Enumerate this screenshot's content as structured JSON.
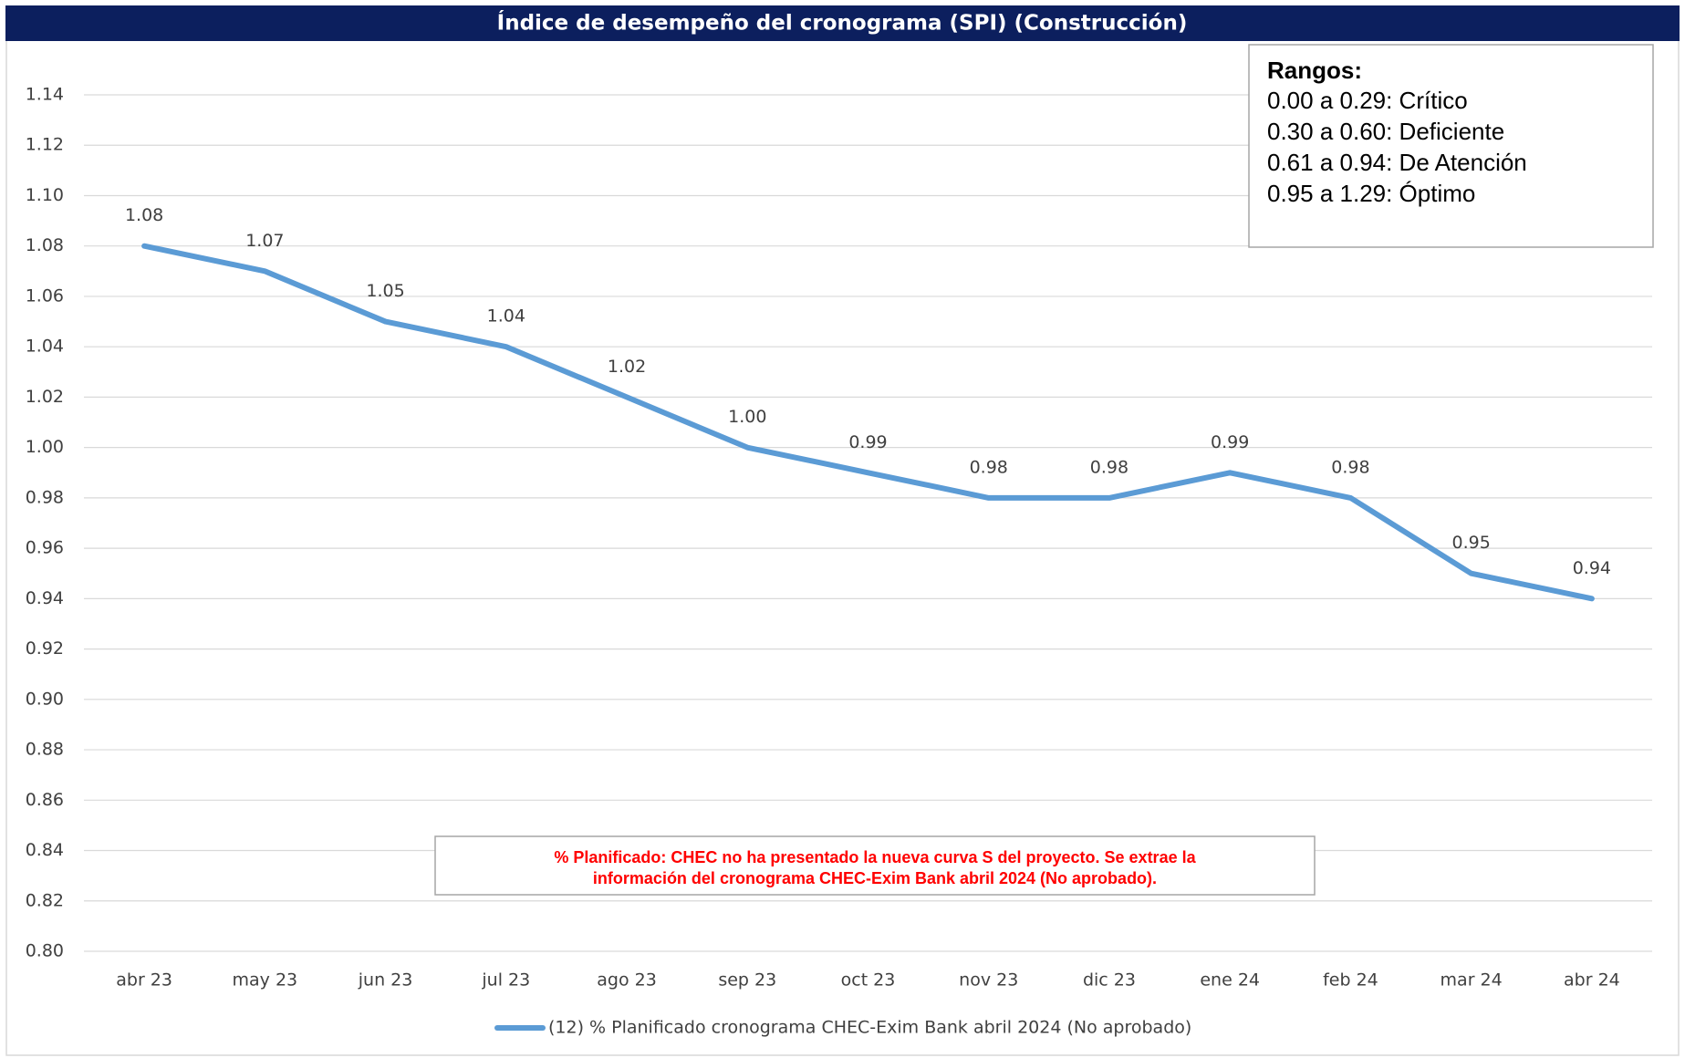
{
  "chart_data": {
    "type": "line",
    "title": "Índice de desempeño del cronograma (SPI) (Construcción)",
    "categories": [
      "abr 23",
      "may 23",
      "jun 23",
      "jul 23",
      "ago 23",
      "sep 23",
      "oct 23",
      "nov 23",
      "dic 23",
      "ene 24",
      "feb 24",
      "mar 24",
      "abr 24"
    ],
    "series": [
      {
        "name": "(12) % Planificado cronograma CHEC-Exim Bank abril 2024 (No aprobado)",
        "color": "#5b9bd5",
        "values": [
          1.08,
          1.07,
          1.05,
          1.04,
          1.02,
          1.0,
          0.99,
          0.98,
          0.98,
          0.99,
          0.98,
          0.95,
          0.94
        ],
        "value_labels": [
          "1.08",
          "1.07",
          "1.05",
          "1.04",
          "1.02",
          "1.00",
          "0.99",
          "0.98",
          "0.98",
          "0.99",
          "0.98",
          "0.95",
          "0.94"
        ]
      }
    ],
    "ylim": [
      0.8,
      1.14
    ],
    "yticks": [
      {
        "value": 0.8,
        "label": "0.80"
      },
      {
        "value": 0.82,
        "label": "0.82"
      },
      {
        "value": 0.84,
        "label": "0.84"
      },
      {
        "value": 0.86,
        "label": "0.86"
      },
      {
        "value": 0.88,
        "label": "0.88"
      },
      {
        "value": 0.9,
        "label": "0.90"
      },
      {
        "value": 0.92,
        "label": "0.92"
      },
      {
        "value": 0.94,
        "label": "0.94"
      },
      {
        "value": 0.96,
        "label": "0.96"
      },
      {
        "value": 0.98,
        "label": "0.98"
      },
      {
        "value": 1.0,
        "label": "1.00"
      },
      {
        "value": 1.02,
        "label": "1.02"
      },
      {
        "value": 1.04,
        "label": "1.04"
      },
      {
        "value": 1.06,
        "label": "1.06"
      },
      {
        "value": 1.08,
        "label": "1.08"
      },
      {
        "value": 1.1,
        "label": "1.10"
      },
      {
        "value": 1.12,
        "label": "1.12"
      },
      {
        "value": 1.14,
        "label": "1.14"
      }
    ],
    "grid": true,
    "legend": "bottom",
    "ranges_box": {
      "title": "Rangos:",
      "lines": [
        "0.00 a 0.29: Crítico",
        "0.30 a 0.60: Deficiente",
        "0.61 a 0.94: De Atención",
        "0.95 a 1.29: Óptimo"
      ]
    },
    "note": [
      "% Planificado: CHEC no ha presentado la nueva curva S del proyecto. Se extrae la",
      "información del cronograma CHEC-Exim Bank abril 2024 (No aprobado)."
    ]
  }
}
